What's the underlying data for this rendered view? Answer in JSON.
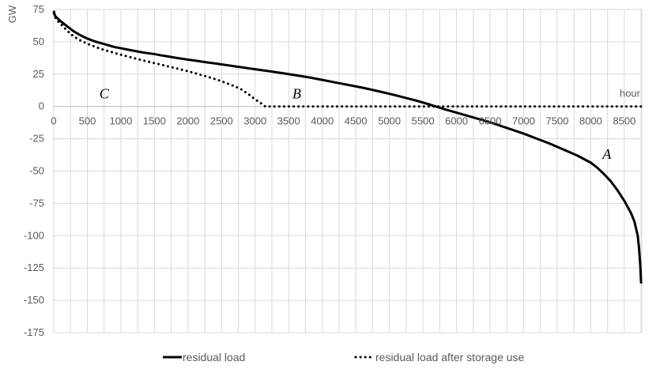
{
  "chart_data": {
    "type": "line",
    "title": "",
    "ylabel": "GW",
    "xlabel": "hour",
    "ylim": [
      -175,
      75
    ],
    "xlim": [
      0,
      8760
    ],
    "yticks": [
      75,
      50,
      25,
      0,
      -25,
      -50,
      -75,
      -100,
      -125,
      -150,
      -175
    ],
    "xticks": [
      0,
      500,
      1000,
      1500,
      2000,
      2500,
      3000,
      3500,
      4000,
      4500,
      5000,
      5500,
      6000,
      6500,
      7000,
      7500,
      8000,
      8500
    ],
    "x_gridlines_step": 250,
    "grid": true,
    "legend_position": "bottom",
    "series": [
      {
        "name": "residual load",
        "style": "solid",
        "color": "#000000",
        "points": [
          [
            0,
            74
          ],
          [
            20,
            70
          ],
          [
            60,
            68
          ],
          [
            100,
            66
          ],
          [
            200,
            62
          ],
          [
            300,
            58
          ],
          [
            400,
            55
          ],
          [
            500,
            52.5
          ],
          [
            600,
            50.5
          ],
          [
            700,
            49
          ],
          [
            800,
            47.5
          ],
          [
            900,
            46
          ],
          [
            1000,
            45
          ],
          [
            1100,
            44
          ],
          [
            1200,
            43
          ],
          [
            1300,
            42
          ],
          [
            1400,
            41.2
          ],
          [
            1500,
            40.5
          ],
          [
            1600,
            39.5
          ],
          [
            1700,
            38.7
          ],
          [
            1800,
            37.8
          ],
          [
            1900,
            37
          ],
          [
            2000,
            36.2
          ],
          [
            2100,
            35.5
          ],
          [
            2200,
            34.7
          ],
          [
            2300,
            34
          ],
          [
            2400,
            33.3
          ],
          [
            2500,
            32.5
          ],
          [
            2600,
            31.8
          ],
          [
            2700,
            31
          ],
          [
            2800,
            30.3
          ],
          [
            2900,
            29.5
          ],
          [
            3000,
            28.8
          ],
          [
            3200,
            27.3
          ],
          [
            3400,
            25.8
          ],
          [
            3600,
            24.2
          ],
          [
            3800,
            22.5
          ],
          [
            4000,
            20.5
          ],
          [
            4200,
            18.5
          ],
          [
            4400,
            16.5
          ],
          [
            4600,
            14.5
          ],
          [
            4800,
            12.2
          ],
          [
            5000,
            9.8
          ],
          [
            5200,
            7.2
          ],
          [
            5400,
            4.5
          ],
          [
            5600,
            1.5
          ],
          [
            5800,
            -1.8
          ],
          [
            6000,
            -4.8
          ],
          [
            6200,
            -7.8
          ],
          [
            6400,
            -10.8
          ],
          [
            6600,
            -14
          ],
          [
            6800,
            -17.5
          ],
          [
            7000,
            -21
          ],
          [
            7200,
            -25
          ],
          [
            7400,
            -29
          ],
          [
            7600,
            -33.5
          ],
          [
            7800,
            -38
          ],
          [
            8000,
            -43.5
          ],
          [
            8100,
            -47.5
          ],
          [
            8200,
            -52.5
          ],
          [
            8300,
            -58
          ],
          [
            8400,
            -65
          ],
          [
            8500,
            -73
          ],
          [
            8600,
            -82.5
          ],
          [
            8650,
            -89
          ],
          [
            8700,
            -100
          ],
          [
            8720,
            -110
          ],
          [
            8740,
            -125
          ],
          [
            8750,
            -137
          ]
        ]
      },
      {
        "name": "residual load after storage use",
        "style": "dotted",
        "color": "#000000",
        "points": [
          [
            0,
            72
          ],
          [
            20,
            69
          ],
          [
            60,
            66
          ],
          [
            100,
            64
          ],
          [
            200,
            58.5
          ],
          [
            300,
            54
          ],
          [
            400,
            51
          ],
          [
            500,
            48.5
          ],
          [
            600,
            46.5
          ],
          [
            700,
            44.5
          ],
          [
            800,
            43
          ],
          [
            900,
            41.5
          ],
          [
            1000,
            40
          ],
          [
            1100,
            38.7
          ],
          [
            1200,
            37.3
          ],
          [
            1300,
            36
          ],
          [
            1400,
            34.7
          ],
          [
            1500,
            33.5
          ],
          [
            1600,
            32.3
          ],
          [
            1700,
            31
          ],
          [
            1800,
            29.8
          ],
          [
            1900,
            28.5
          ],
          [
            2000,
            27.2
          ],
          [
            2100,
            25.8
          ],
          [
            2200,
            24.3
          ],
          [
            2300,
            22.8
          ],
          [
            2400,
            21.2
          ],
          [
            2500,
            19.5
          ],
          [
            2600,
            17.5
          ],
          [
            2700,
            15.5
          ],
          [
            2800,
            13
          ],
          [
            2900,
            9.5
          ],
          [
            3000,
            5.5
          ],
          [
            3100,
            2
          ],
          [
            3150,
            0
          ],
          [
            3500,
            0
          ],
          [
            4000,
            0
          ],
          [
            5000,
            0
          ],
          [
            6000,
            0
          ],
          [
            7000,
            0
          ],
          [
            8000,
            0
          ],
          [
            8750,
            0
          ]
        ]
      }
    ],
    "annotations": [
      {
        "text": "C",
        "x": 750,
        "y": 10
      },
      {
        "text": "B",
        "x": 3620,
        "y": 10
      },
      {
        "text": "A",
        "x": 8240,
        "y": -37
      }
    ]
  }
}
